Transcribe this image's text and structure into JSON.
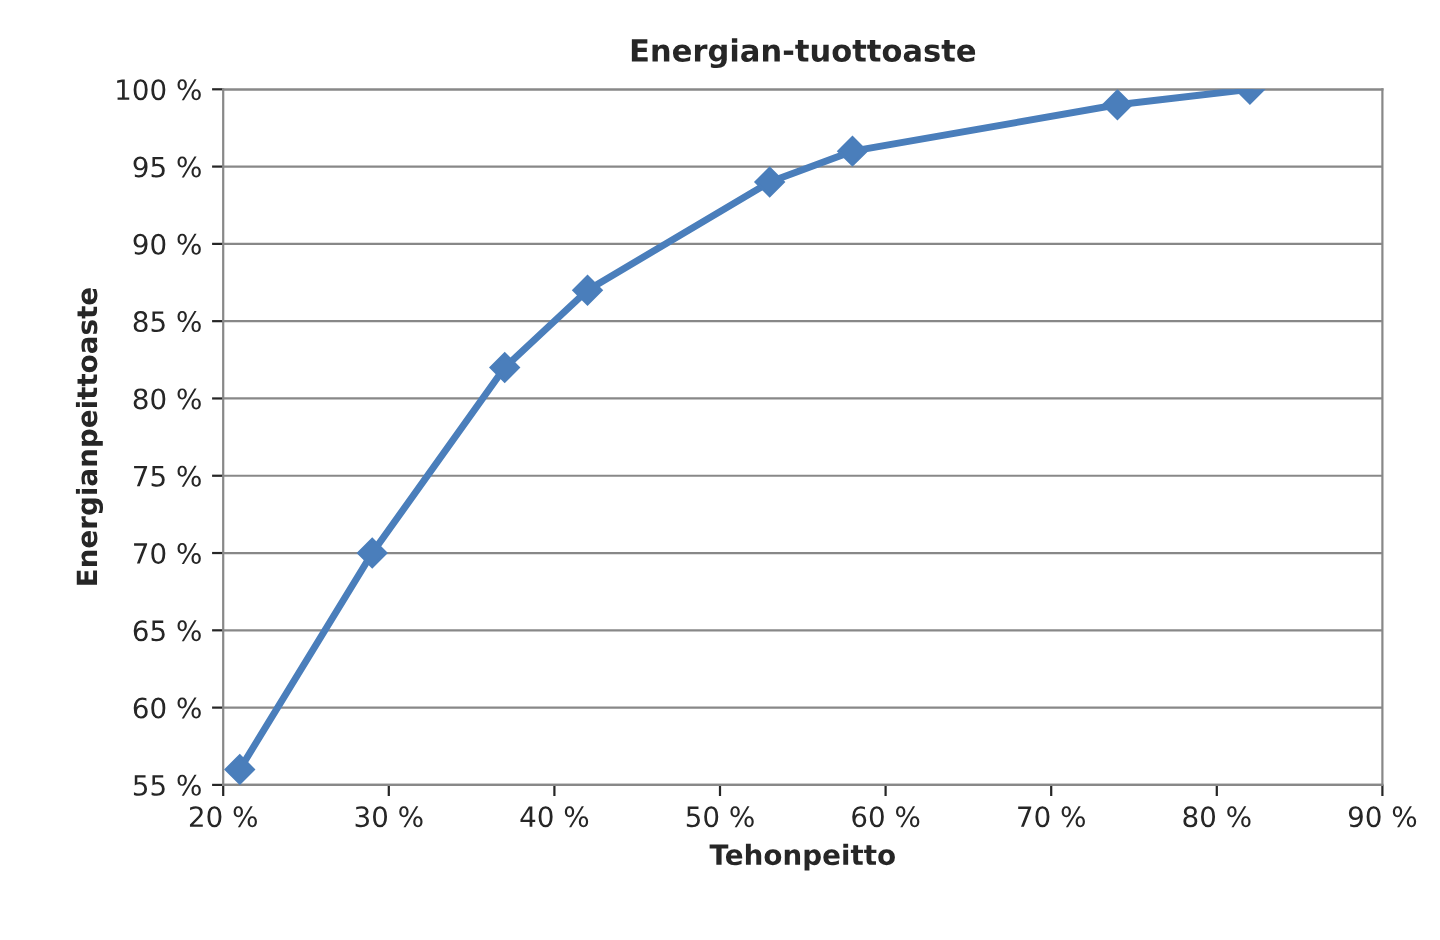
{
  "chart_data": {
    "type": "line",
    "title": "Energian-tuottoaste",
    "xlabel": "Tehonpeitto",
    "ylabel": "Energianpeittoaste",
    "x": [
      21,
      29,
      37,
      42,
      53,
      58,
      74,
      82
    ],
    "series": [
      {
        "color": "#4a7ebb",
        "values": [
          56,
          70,
          82,
          87,
          94,
          96,
          99,
          100
        ]
      }
    ],
    "xlim": [
      20,
      90
    ],
    "ylim": [
      55,
      100
    ],
    "xticks": [
      {
        "value": 20,
        "label": "20 %"
      },
      {
        "value": 30,
        "label": "30 %"
      },
      {
        "value": 40,
        "label": "40 %"
      },
      {
        "value": 50,
        "label": "50 %"
      },
      {
        "value": 60,
        "label": "60 %"
      },
      {
        "value": 70,
        "label": "70 %"
      },
      {
        "value": 80,
        "label": "80 %"
      },
      {
        "value": 90,
        "label": "90 %"
      }
    ],
    "yticks": [
      {
        "value": 55,
        "label": "55 %"
      },
      {
        "value": 60,
        "label": "60 %"
      },
      {
        "value": 65,
        "label": "65 %"
      },
      {
        "value": 70,
        "label": "70 %"
      },
      {
        "value": 75,
        "label": "75 %"
      },
      {
        "value": 80,
        "label": "80 %"
      },
      {
        "value": 85,
        "label": "85 %"
      },
      {
        "value": 90,
        "label": "90 %"
      },
      {
        "value": 95,
        "label": "95 %"
      },
      {
        "value": 100,
        "label": "100 %"
      }
    ],
    "grid": "y",
    "marker": "diamond",
    "line_style": "solid",
    "legend": false
  }
}
